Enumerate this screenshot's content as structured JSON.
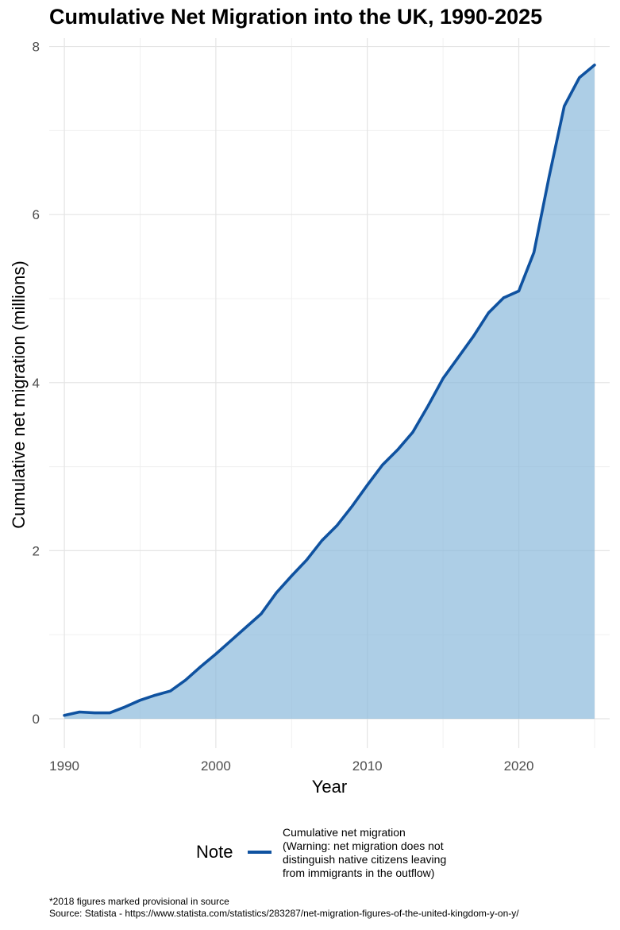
{
  "chart_data": {
    "type": "area",
    "title": "Cumulative Net Migration into the UK, 1990-2025",
    "xlabel": "Year",
    "ylabel": "Cumulative net migration (millions)",
    "xlim": [
      1989,
      2026
    ],
    "ylim": [
      -0.35,
      8.1
    ],
    "x_ticks": [
      1990,
      2000,
      2010,
      2020
    ],
    "y_ticks": [
      0,
      2,
      4,
      6,
      8
    ],
    "grid": true,
    "legend_position": "bottom",
    "line_color": "#0f52a0",
    "fill_color": "#8ab9dc",
    "x": [
      1990,
      1991,
      1992,
      1993,
      1994,
      1995,
      1996,
      1997,
      1998,
      1999,
      2000,
      2001,
      2002,
      2003,
      2004,
      2005,
      2006,
      2007,
      2008,
      2009,
      2010,
      2011,
      2012,
      2013,
      2014,
      2015,
      2016,
      2017,
      2018,
      2019,
      2020,
      2021,
      2022,
      2023,
      2024,
      2025
    ],
    "series": [
      {
        "name": "Cumulative net migration\n(Warning: net migration does not\ndistinguish native citizens leaving\nfrom immigrants in the outflow)",
        "values": [
          0.04,
          0.08,
          0.07,
          0.07,
          0.14,
          0.22,
          0.28,
          0.33,
          0.46,
          0.62,
          0.77,
          0.93,
          1.09,
          1.25,
          1.5,
          1.7,
          1.89,
          2.12,
          2.3,
          2.53,
          2.78,
          3.02,
          3.2,
          3.41,
          3.72,
          4.05,
          4.3,
          4.55,
          4.83,
          5.01,
          5.09,
          5.55,
          6.45,
          7.29,
          7.63,
          7.78
        ]
      }
    ]
  },
  "legend": {
    "title": "Note"
  },
  "footnote": {
    "line1": "*2018 figures marked provisional in source",
    "line2": "Source: Statista - https://www.statista.com/statistics/283287/net-migration-figures-of-the-united-kingdom-y-on-y/"
  }
}
